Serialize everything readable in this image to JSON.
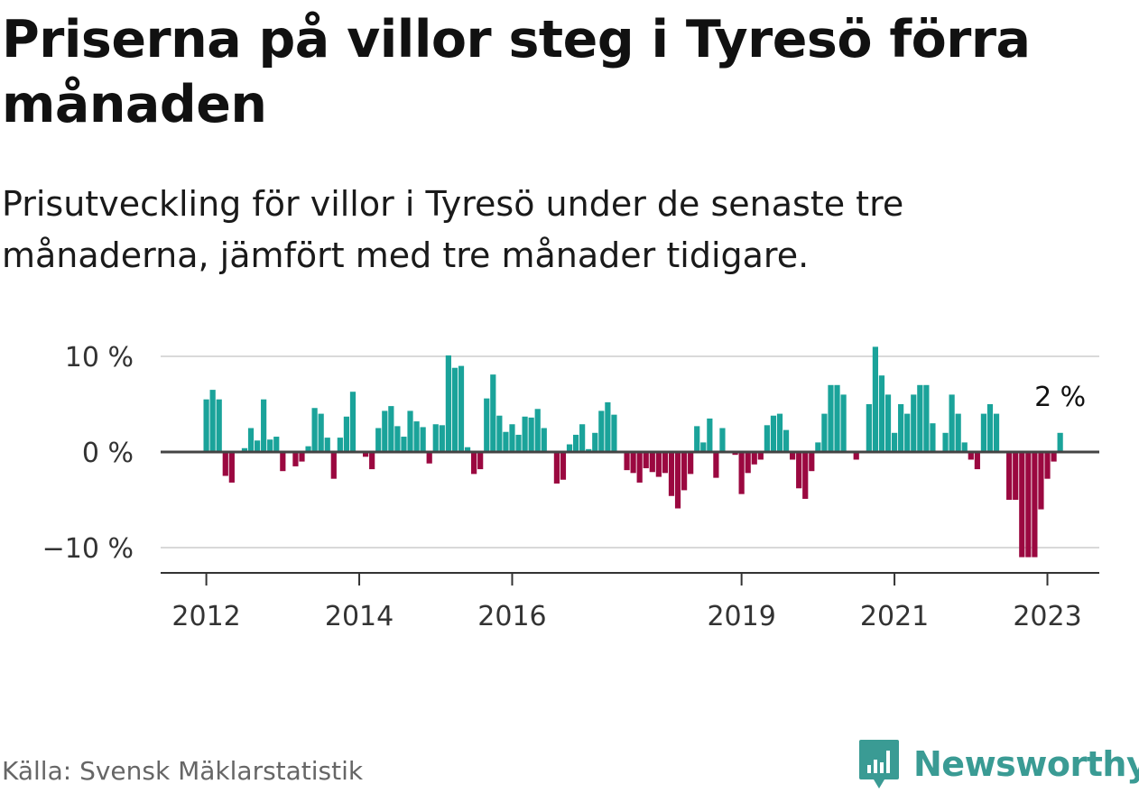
{
  "title": "Priserna på villor steg i Tyresö förra månaden",
  "subtitle": "Prisutveckling för villor i Tyresö under de senaste tre månaderna, jämfört med tre månader tidigare.",
  "source": "Källa: Svensk Mäklarstatistik",
  "brand": {
    "name": "Newsworthy",
    "icon": "newsworthy-logo-icon",
    "color": "#3a9b94"
  },
  "colors": {
    "positive": "#1aa39a",
    "negative": "#9b0840",
    "zero_line": "#444444",
    "grid": "#d9d9d9"
  },
  "chart_data": {
    "type": "bar",
    "x_unit": "month",
    "x_start": "2012-01",
    "x_end": "2023-02",
    "ylim": [
      -12,
      11
    ],
    "yticks": [
      -10,
      0,
      10
    ],
    "ytick_labels": [
      "−10 %",
      "0 %",
      "10 %"
    ],
    "xticks": [
      "2012",
      "2014",
      "2016",
      "2019",
      "2021",
      "2023"
    ],
    "grid": true,
    "annotation": {
      "label": "2 %",
      "at": "last"
    },
    "values": [
      5.5,
      6.5,
      5.5,
      -2.5,
      -3.2,
      0,
      0.4,
      2.5,
      1.2,
      5.5,
      1.3,
      1.6,
      -2,
      0,
      -1.5,
      -1,
      0.6,
      4.6,
      4,
      1.5,
      -2.8,
      1.5,
      3.7,
      6.3,
      0,
      -0.5,
      -1.8,
      2.5,
      4.3,
      4.8,
      2.7,
      1.6,
      4.3,
      3.2,
      2.6,
      -1.2,
      2.9,
      2.8,
      10.1,
      8.8,
      9,
      0.5,
      -2.3,
      -1.8,
      5.6,
      8.1,
      3.8,
      2.1,
      2.9,
      1.8,
      3.7,
      3.6,
      4.5,
      2.5,
      0,
      -3.3,
      -2.9,
      0.8,
      1.8,
      2.9,
      0.3,
      2,
      4.3,
      5.2,
      3.9,
      0,
      -1.9,
      -2.2,
      -3.2,
      -1.7,
      -2.1,
      -2.6,
      -2.2,
      -4.6,
      -5.9,
      -4,
      -2.3,
      2.7,
      1,
      3.5,
      -2.7,
      2.5,
      0,
      -0.3,
      -4.4,
      -2.2,
      -1.3,
      -0.8,
      2.8,
      3.8,
      4,
      2.3,
      -0.8,
      -3.8,
      -4.9,
      -2,
      1,
      4,
      7,
      7,
      6,
      0,
      -0.8,
      0,
      5,
      11,
      8,
      6,
      2,
      5,
      4,
      6,
      7,
      7,
      3,
      0,
      2,
      6,
      4,
      1,
      -0.8,
      -1.8,
      4,
      5,
      4,
      0,
      -5,
      -5,
      -11,
      -11,
      -11,
      -6,
      -2.8,
      -1,
      2
    ]
  }
}
